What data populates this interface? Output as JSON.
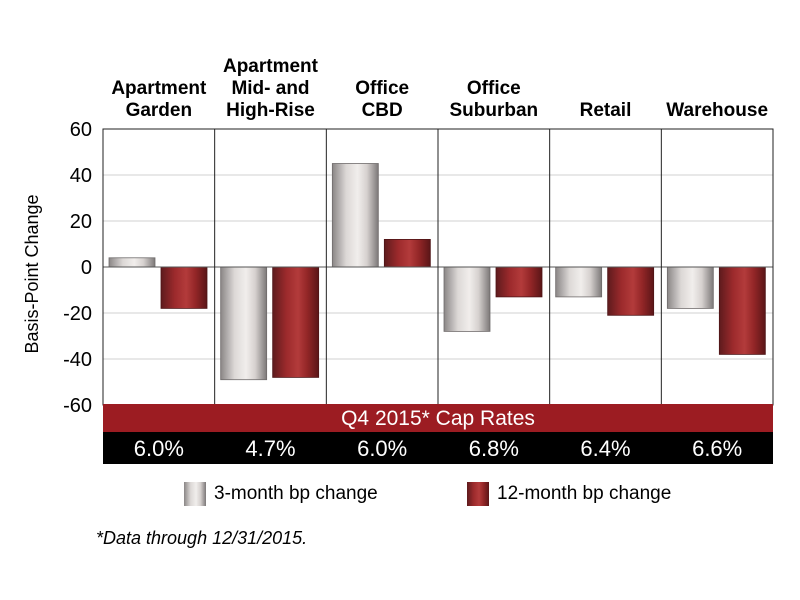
{
  "chart_data": {
    "type": "bar",
    "categories": [
      [
        "Apartment",
        "Garden"
      ],
      [
        "Apartment",
        "Mid- and",
        "High-Rise"
      ],
      [
        "Office",
        "CBD"
      ],
      [
        "Office",
        "Suburban"
      ],
      [
        "Retail"
      ],
      [
        "Warehouse"
      ]
    ],
    "series": [
      {
        "name": "3-month bp change",
        "values": [
          4,
          -49,
          45,
          -28,
          -13,
          -18
        ]
      },
      {
        "name": "12-month bp change",
        "values": [
          -18,
          -48,
          12,
          -13,
          -21,
          -38
        ]
      }
    ],
    "ylabel": "Basis-Point Change",
    "ylim": [
      -60,
      60
    ],
    "yticks": [
      "60",
      "40",
      "20",
      "0",
      "-20",
      "-40",
      "-60"
    ],
    "grid": true,
    "band_title": "Q4 2015* Cap Rates",
    "cap_rates": [
      "6.0%",
      "4.7%",
      "6.0%",
      "6.8%",
      "6.4%",
      "6.6%"
    ],
    "legend_position": "bottom",
    "colors": {
      "series_3m": "#e6e2e0",
      "series_12m": "#9c2a2c",
      "band": "#9c1c22",
      "rates_bg": "#000000"
    }
  },
  "legend": {
    "item1": "3-month bp change",
    "item2": "12-month bp change"
  },
  "footnote": "*Data through 12/31/2015."
}
